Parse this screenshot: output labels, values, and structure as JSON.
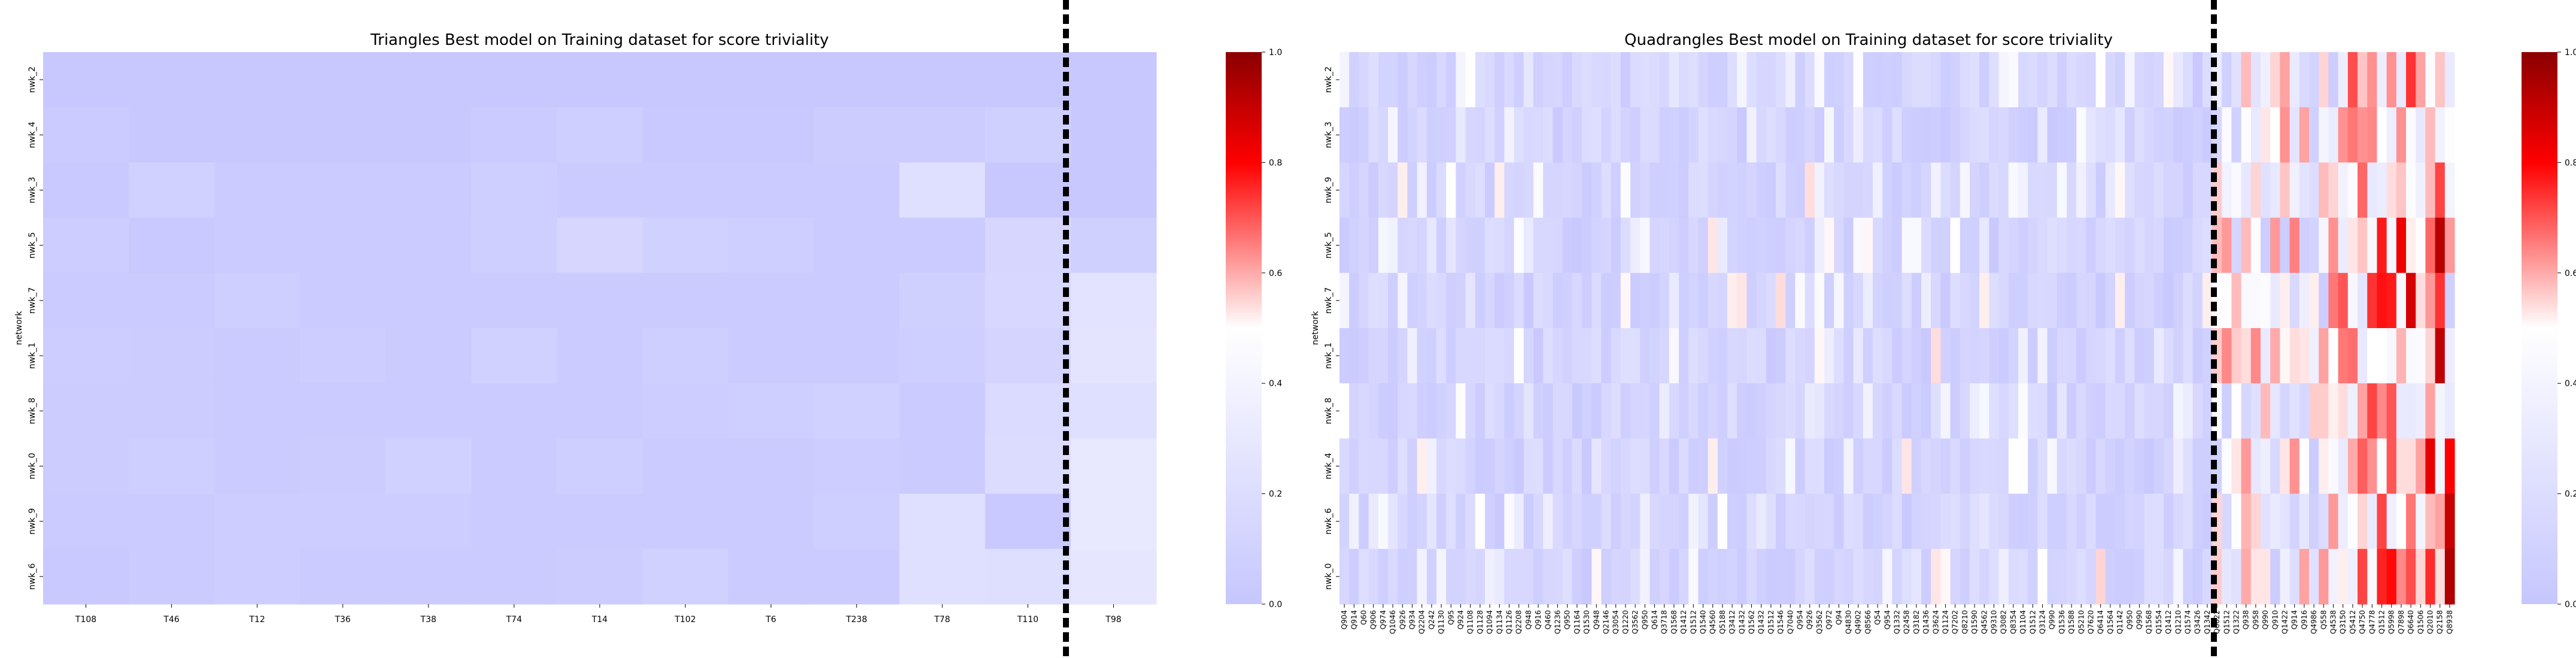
{
  "chart_data": [
    {
      "type": "heatmap",
      "title": "Triangles Best model on Training dataset for score triviality",
      "xlabel": "",
      "ylabel": "network",
      "rows": [
        "nwk_2",
        "nwk_4",
        "nwk_3",
        "nwk_5",
        "nwk_7",
        "nwk_1",
        "nwk_8",
        "nwk_0",
        "nwk_9",
        "nwk_6"
      ],
      "columns": [
        "T108",
        "T46",
        "T12",
        "T36",
        "T38",
        "T74",
        "T14",
        "T102",
        "T6",
        "T238",
        "T78",
        "T110",
        "T98"
      ],
      "values": [
        [
          0.02,
          0.02,
          0.02,
          0.02,
          0.02,
          0.02,
          0.02,
          0.02,
          0.02,
          0.02,
          0.02,
          0.02,
          0.02
        ],
        [
          0.04,
          0.02,
          0.02,
          0.02,
          0.02,
          0.04,
          0.08,
          0.03,
          0.03,
          0.05,
          0.05,
          0.09,
          0.02
        ],
        [
          0.03,
          0.1,
          0.04,
          0.04,
          0.04,
          0.08,
          0.04,
          0.04,
          0.04,
          0.04,
          0.22,
          0.02,
          0.02
        ],
        [
          0.06,
          0.03,
          0.04,
          0.04,
          0.04,
          0.07,
          0.14,
          0.1,
          0.07,
          0.04,
          0.04,
          0.14,
          0.09
        ],
        [
          0.04,
          0.04,
          0.08,
          0.04,
          0.04,
          0.04,
          0.04,
          0.04,
          0.04,
          0.04,
          0.09,
          0.15,
          0.25
        ],
        [
          0.06,
          0.05,
          0.04,
          0.06,
          0.04,
          0.1,
          0.04,
          0.08,
          0.04,
          0.04,
          0.07,
          0.12,
          0.26
        ],
        [
          0.05,
          0.05,
          0.04,
          0.04,
          0.04,
          0.04,
          0.04,
          0.06,
          0.08,
          0.1,
          0.04,
          0.18,
          0.22
        ],
        [
          0.05,
          0.08,
          0.04,
          0.05,
          0.1,
          0.04,
          0.08,
          0.04,
          0.04,
          0.06,
          0.04,
          0.19,
          0.3
        ],
        [
          0.04,
          0.04,
          0.06,
          0.06,
          0.06,
          0.04,
          0.04,
          0.04,
          0.04,
          0.08,
          0.22,
          0.03,
          0.3
        ],
        [
          0.03,
          0.04,
          0.06,
          0.04,
          0.04,
          0.04,
          0.05,
          0.1,
          0.04,
          0.04,
          0.22,
          0.21,
          0.28
        ]
      ],
      "vmin": 0.0,
      "vmax": 1.0,
      "colorbar_ticks": [
        "0.0",
        "0.2",
        "0.4",
        "0.6",
        "0.8",
        "1.0"
      ],
      "colormap": [
        "#c6c6ff",
        "#ffffff",
        "#ff0000",
        "#8b0000"
      ],
      "separator_before_column": "T98"
    },
    {
      "type": "heatmap",
      "title": "Quadrangles Best model on Training dataset for score triviality",
      "xlabel": "",
      "ylabel": "network",
      "rows": [
        "nwk_2",
        "nwk_3",
        "nwk_9",
        "nwk_5",
        "nwk_7",
        "nwk_1",
        "nwk_8",
        "nwk_4",
        "nwk_6",
        "nwk_0"
      ],
      "columns": [
        "Q904",
        "Q914",
        "Q60",
        "Q906",
        "Q974",
        "Q1046",
        "Q926",
        "Q934",
        "Q2204",
        "Q242",
        "Q1130",
        "Q95",
        "Q924",
        "Q1108",
        "Q1128",
        "Q1094",
        "Q1134",
        "Q1126",
        "Q2208",
        "Q948",
        "Q916",
        "Q460",
        "Q1236",
        "Q950",
        "Q1164",
        "Q1530",
        "Q948",
        "Q2146",
        "Q3054",
        "Q1220",
        "Q3562",
        "Q950",
        "Q614",
        "Q3718",
        "Q1568",
        "Q1412",
        "Q1512",
        "Q1540",
        "Q4560",
        "Q5188",
        "Q3412",
        "Q1432",
        "Q1562",
        "Q1432",
        "Q1512",
        "Q1546",
        "Q7040",
        "Q954",
        "Q926",
        "Q3562",
        "Q972",
        "Q94",
        "Q4830",
        "Q4902",
        "Q8566",
        "Q54",
        "Q954",
        "Q1332",
        "Q2458",
        "Q3182",
        "Q1436",
        "Q3624",
        "Q1124",
        "Q7202",
        "Q8210",
        "Q1590",
        "Q4562",
        "Q9310",
        "Q3082",
        "Q8354",
        "Q1104",
        "Q1512",
        "Q3124",
        "Q990",
        "Q1536",
        "Q1588",
        "Q5210",
        "Q7620",
        "Q6414",
        "Q1564",
        "Q1142",
        "Q950",
        "Q990",
        "Q1568",
        "Q1554",
        "Q1412",
        "Q1210",
        "Q1574",
        "Q3426",
        "Q1342",
        "Q6622",
        "Q1512",
        "Q1322",
        "Q938",
        "Q958",
        "Q990",
        "Q910",
        "Q1422",
        "Q914",
        "Q916",
        "Q4986",
        "Q558",
        "Q4538",
        "Q3150",
        "Q5412",
        "Q4750",
        "Q4778",
        "Q1512",
        "Q5998",
        "Q7898",
        "Q6640",
        "Q1506",
        "Q2010",
        "Q2158",
        "Q8938"
      ],
      "separator_before_index": 101,
      "vmin": 0.0,
      "vmax": 1.0,
      "colorbar_ticks": [
        "0.0",
        "0.2",
        "0.4",
        "0.6",
        "0.8",
        "1.0"
      ],
      "colormap": [
        "#c6c6ff",
        "#ffffff",
        "#ff0000",
        "#8b0000"
      ],
      "generation": "seeded-approximation"
    }
  ]
}
